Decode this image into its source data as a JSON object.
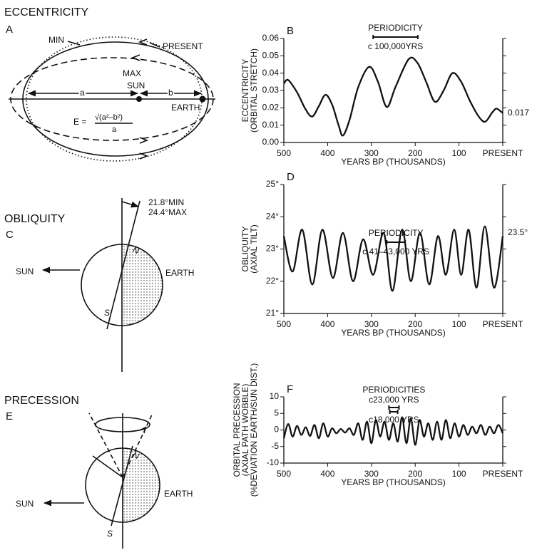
{
  "panels": {
    "eccentricity": {
      "title": "ECCENTRICITY",
      "letter": "A",
      "min": "MIN",
      "present": "PRESENT",
      "max": "MAX",
      "sun": "SUN",
      "a": "a",
      "b": "b",
      "earth": "EARTH",
      "formula_lhs": "E =",
      "formula_numerator": "√(a²–b²)",
      "formula_denominator": "a"
    },
    "obliquity": {
      "title": "OBLIQUITY",
      "letter": "C",
      "min": "21.8°MIN",
      "max": "24.4°MAX",
      "n": "N",
      "s": "S",
      "sun": "SUN",
      "earth": "EARTH"
    },
    "precession": {
      "title": "PRECESSION",
      "letter": "E",
      "n": "N",
      "s": "S",
      "sun": "SUN",
      "earth": "EARTH"
    }
  },
  "chart_data": [
    {
      "type": "line",
      "label": "B",
      "color": "#111111",
      "ylabel": [
        "ECCENTRICITY",
        "(ORBITAL STRETCH)"
      ],
      "xlabel": "YEARS BP (THOUSANDS)",
      "x": [
        500,
        490,
        470,
        450,
        435,
        420,
        405,
        390,
        375,
        365,
        350,
        330,
        305,
        285,
        265,
        245,
        215,
        195,
        175,
        155,
        135,
        115,
        95,
        75,
        55,
        40,
        25,
        15,
        5,
        0
      ],
      "values": [
        0.034,
        0.036,
        0.029,
        0.019,
        0.015,
        0.021,
        0.0275,
        0.022,
        0.01,
        0.004,
        0.013,
        0.032,
        0.0436,
        0.035,
        0.0205,
        0.032,
        0.048,
        0.046,
        0.035,
        0.0235,
        0.03,
        0.04,
        0.035,
        0.024,
        0.015,
        0.012,
        0.017,
        0.0195,
        0.018,
        0.017
      ],
      "xlim": [
        500,
        0
      ],
      "xticks": [
        500,
        400,
        300,
        200,
        100,
        {
          "value": 0,
          "label": "PRESENT"
        }
      ],
      "ylim": [
        0,
        0.06
      ],
      "yticks": [
        {
          "value": 0,
          "label": "0.00"
        },
        0.01,
        0.02,
        0.03,
        0.04,
        0.05,
        0.06
      ],
      "right_annotation": 0.017,
      "periodicity": {
        "title": "PERIODICITY",
        "bars": [
          {
            "span": [
              296,
              194
            ],
            "label": "c 100,000YRS"
          }
        ]
      }
    },
    {
      "type": "line",
      "label": "D",
      "color": "#111111",
      "ylabel": [
        "OBLIQUITY",
        "(AXIAL TILT)"
      ],
      "xlabel": "YEARS BP (THOUSANDS)",
      "x": [
        500,
        480,
        458,
        435,
        412,
        388,
        365,
        342,
        319,
        296,
        272,
        252,
        230,
        210,
        189,
        168,
        148,
        130,
        111,
        95,
        78,
        60,
        41,
        20,
        0
      ],
      "values": [
        23.4,
        22.3,
        23.6,
        21.9,
        23.6,
        22.1,
        23.5,
        22.0,
        23.3,
        22.2,
        23.5,
        21.7,
        23.6,
        22.0,
        23.5,
        21.9,
        23.4,
        22.2,
        23.6,
        22.2,
        23.6,
        21.8,
        23.7,
        21.8,
        23.4
      ],
      "xlim": [
        500,
        0
      ],
      "xticks": [
        500,
        400,
        300,
        200,
        100,
        {
          "value": 0,
          "label": "PRESENT"
        }
      ],
      "ylim": [
        21,
        25
      ],
      "yticks": [
        {
          "value": 21,
          "label": "21°"
        },
        {
          "value": 22,
          "label": "22°"
        },
        {
          "value": 23,
          "label": "23°"
        },
        {
          "value": 24,
          "label": "24°"
        },
        {
          "value": 25,
          "label": "25°"
        }
      ],
      "right_annotation": {
        "value": 23.5,
        "label": "23.5°"
      },
      "periodicity": {
        "title": "PERIODICITY",
        "bars": [
          {
            "span": [
              265,
              223
            ],
            "label": "c 41–43,000 YRS"
          }
        ]
      }
    },
    {
      "type": "line",
      "label": "F",
      "color": "#111111",
      "ylabel": [
        "ORBITAL PRECESSION",
        "(AXIAL PATH WOBBLE)",
        "(%DEVIATION EARTH/SUN DIST.)"
      ],
      "xlabel": "YEARS BP (THOUSANDS)",
      "x": [
        500,
        490,
        480,
        470,
        460,
        450,
        440,
        430,
        420,
        410,
        400,
        390,
        380,
        370,
        360,
        350,
        340,
        330,
        320,
        310,
        300,
        290,
        280,
        270,
        260,
        250,
        240,
        230,
        220,
        210,
        200,
        190,
        180,
        170,
        160,
        150,
        140,
        130,
        120,
        110,
        100,
        90,
        80,
        70,
        60,
        50,
        40,
        30,
        20,
        10,
        0
      ],
      "values": [
        -2.5,
        1.8,
        -2,
        1.2,
        -1.5,
        0.8,
        -1.8,
        1.5,
        -2.5,
        2.0,
        -2.0,
        0.5,
        -1.0,
        0.3,
        -0.8,
        0.5,
        -1.5,
        2.0,
        -3.0,
        2.5,
        -4.0,
        3.0,
        -2.0,
        2.5,
        -3.0,
        2.0,
        -3.5,
        3.8,
        -4.0,
        3.5,
        -4.5,
        3.0,
        -2.0,
        2.0,
        -3.0,
        2.5,
        -3.0,
        3.0,
        -2.5,
        2.0,
        -2.0,
        1.5,
        -1.5,
        1.0,
        -1.0,
        1.5,
        -1.5,
        1.0,
        -1.0,
        1.5,
        -1.0
      ],
      "xlim": [
        500,
        0
      ],
      "xticks": [
        500,
        400,
        300,
        200,
        100,
        {
          "value": 0,
          "label": "PRESENT"
        }
      ],
      "ylim": [
        -10,
        10
      ],
      "yticks": [
        -10,
        -5,
        0,
        5,
        10
      ],
      "periodicity": {
        "title": "PERIODICITIES",
        "bars": [
          {
            "span": [
              260,
              237
            ],
            "label": "c23,000 YRS"
          },
          {
            "span": [
              258,
              240
            ],
            "label": "c18,000 YRS"
          }
        ]
      }
    }
  ]
}
